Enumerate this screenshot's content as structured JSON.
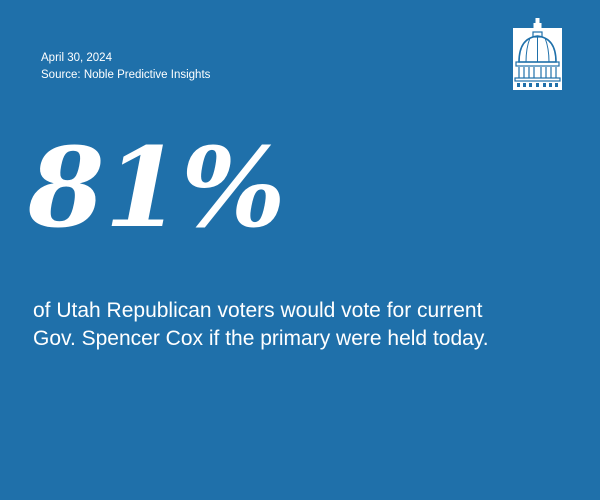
{
  "date": "April 30, 2024",
  "source": "Source: Noble Predictive Insights",
  "logo_icon": "capitol-dome-icon",
  "headline_stat": "81%",
  "caption_lines": [
    "of Utah Republican voters would vote for current",
    "Gov. Spencer Cox if the primary were held today."
  ],
  "colors": {
    "background": "#1f70aa",
    "text": "#ffffff"
  }
}
